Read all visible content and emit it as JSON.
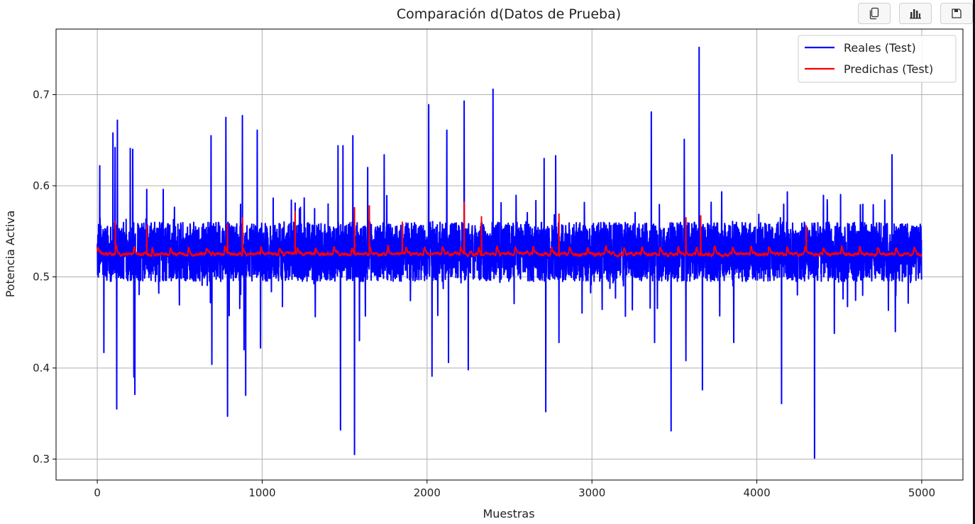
{
  "toolbar": {
    "buttons": [
      {
        "icon": "copy-icon"
      },
      {
        "icon": "bar-chart-icon"
      },
      {
        "icon": "save-icon"
      }
    ]
  },
  "chart_data": {
    "type": "line",
    "title": "Comparación d(Datos de Prueba)",
    "xlabel": "Muestras",
    "ylabel": "Potencia Activa",
    "xlim": [
      -250,
      5250
    ],
    "ylim": [
      0.277,
      0.772
    ],
    "xticks": [
      0,
      1000,
      2000,
      3000,
      4000,
      5000
    ],
    "yticks": [
      0.3,
      0.4,
      0.5,
      0.6,
      0.7
    ],
    "ytick_labels": [
      "0.3",
      "0.4",
      "0.5",
      "0.6",
      "0.7"
    ],
    "grid": true,
    "legend": "top-right",
    "n_points": 5000,
    "series": [
      {
        "name": "Reales (Test)",
        "color": "#0000ff",
        "baseline": 0.525,
        "band_low": 0.495,
        "band_high": 0.56,
        "peaks": [
          [
            15,
            0.622
          ],
          [
            40,
            0.417
          ],
          [
            95,
            0.658
          ],
          [
            108,
            0.642
          ],
          [
            118,
            0.355
          ],
          [
            122,
            0.672
          ],
          [
            200,
            0.641
          ],
          [
            215,
            0.64
          ],
          [
            222,
            0.39
          ],
          [
            228,
            0.371
          ],
          [
            300,
            0.596
          ],
          [
            400,
            0.596
          ],
          [
            690,
            0.655
          ],
          [
            695,
            0.404
          ],
          [
            780,
            0.675
          ],
          [
            790,
            0.347
          ],
          [
            880,
            0.677
          ],
          [
            890,
            0.42
          ],
          [
            900,
            0.37
          ],
          [
            970,
            0.661
          ],
          [
            990,
            0.422
          ],
          [
            1200,
            0.581
          ],
          [
            1400,
            0.58
          ],
          [
            1460,
            0.644
          ],
          [
            1475,
            0.332
          ],
          [
            1490,
            0.644
          ],
          [
            1550,
            0.655
          ],
          [
            1560,
            0.305
          ],
          [
            1590,
            0.43
          ],
          [
            1640,
            0.62
          ],
          [
            1740,
            0.634
          ],
          [
            2010,
            0.689
          ],
          [
            2030,
            0.391
          ],
          [
            2120,
            0.661
          ],
          [
            2130,
            0.406
          ],
          [
            2225,
            0.693
          ],
          [
            2250,
            0.398
          ],
          [
            2400,
            0.706
          ],
          [
            2710,
            0.63
          ],
          [
            2720,
            0.352
          ],
          [
            2780,
            0.633
          ],
          [
            2800,
            0.428
          ],
          [
            3360,
            0.681
          ],
          [
            3380,
            0.428
          ],
          [
            3480,
            0.331
          ],
          [
            3560,
            0.651
          ],
          [
            3570,
            0.408
          ],
          [
            3650,
            0.752
          ],
          [
            3670,
            0.376
          ],
          [
            3860,
            0.428
          ],
          [
            4150,
            0.361
          ],
          [
            4350,
            0.301
          ],
          [
            4470,
            0.438
          ],
          [
            4820,
            0.634
          ],
          [
            4840,
            0.44
          ]
        ]
      },
      {
        "name": "Predichas (Test)",
        "color": "#ff0000",
        "baseline": 0.525,
        "band_low": 0.514,
        "band_high": 0.545,
        "peaks": [
          [
            110,
            0.561
          ],
          [
            300,
            0.556
          ],
          [
            790,
            0.558
          ],
          [
            880,
            0.565
          ],
          [
            1200,
            0.572
          ],
          [
            1560,
            0.576
          ],
          [
            1650,
            0.578
          ],
          [
            1850,
            0.56
          ],
          [
            2225,
            0.582
          ],
          [
            2330,
            0.566
          ],
          [
            2800,
            0.569
          ],
          [
            3570,
            0.565
          ],
          [
            3660,
            0.567
          ],
          [
            4300,
            0.556
          ]
        ]
      }
    ]
  }
}
